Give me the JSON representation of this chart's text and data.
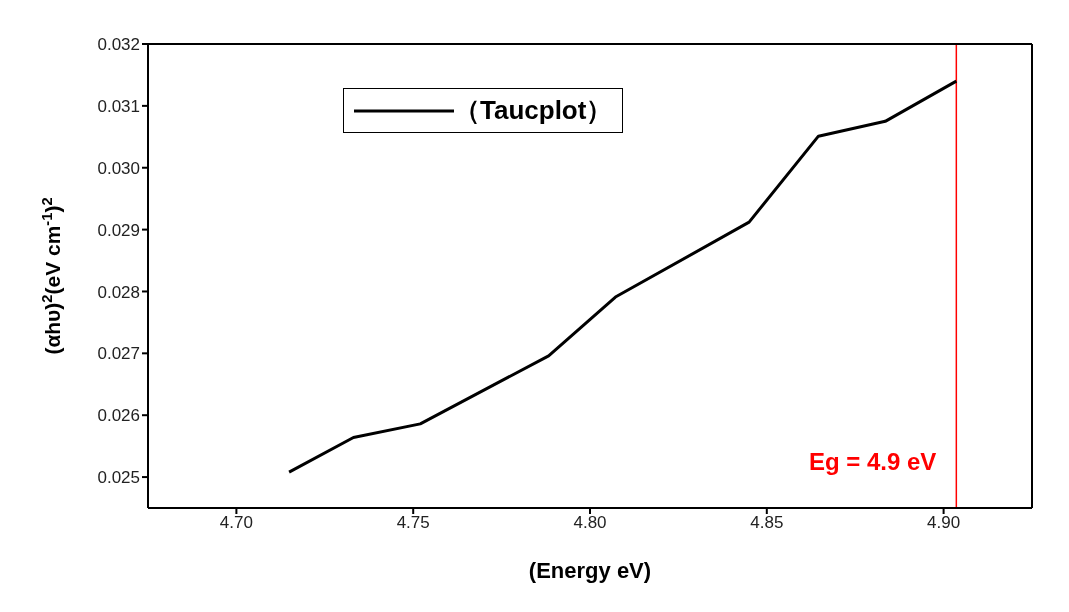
{
  "chart_data": {
    "type": "line",
    "xlabel": "(Energy eV)",
    "ylabel": "(αhυ)$^{2}$(eV cm$^{-1}$)$^{2}$",
    "x": [
      4.7149,
      4.7331,
      4.752,
      4.7883,
      4.8072,
      4.845,
      4.8646,
      4.8835,
      4.9036
    ],
    "series": [
      {
        "name": "（Taucplot）",
        "color": "#000000",
        "values": [
          0.02508,
          0.02564,
          0.02586,
          0.02696,
          0.02791,
          0.02912,
          0.03051,
          0.03075,
          0.0314
        ]
      }
    ],
    "xlim": [
      4.675,
      4.925
    ],
    "xticks": [
      {
        "value": 4.7,
        "label": "4.70"
      },
      4.75,
      {
        "value": 4.8,
        "label": "4.80"
      },
      4.85,
      {
        "value": 4.9,
        "label": "4.90"
      }
    ],
    "ylim": [
      0.0245,
      0.032
    ],
    "yticks": [
      0.025,
      0.026,
      0.027,
      0.028,
      0.029,
      {
        "value": 0.03,
        "label": "0.030"
      },
      0.031,
      0.032
    ],
    "ref_lines": [
      {
        "axis": "x",
        "value": 4.9036,
        "label": "Eg = 4.9 eV",
        "color": "#ff0000"
      }
    ],
    "legend": "top left",
    "marker": "none",
    "line_style": "solid"
  }
}
